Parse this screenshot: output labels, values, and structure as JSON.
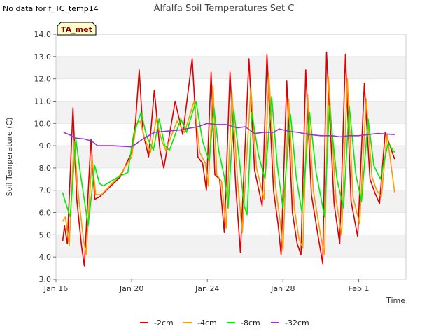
{
  "note": "No data for f_TC_temp14",
  "chart_data": {
    "type": "line",
    "title": "Alfalfa Soil Temperatures Set C",
    "xlabel": "Time",
    "ylabel": "Soil Temperature (C)",
    "badge": "TA_met",
    "xlim": [
      16.0,
      34.5
    ],
    "ylim": [
      3.0,
      14.0
    ],
    "x_ticks": [
      {
        "x": 16,
        "label": "Jan 16"
      },
      {
        "x": 20,
        "label": "Jan 20"
      },
      {
        "x": 24,
        "label": "Jan 24"
      },
      {
        "x": 28,
        "label": "Jan 28"
      },
      {
        "x": 32,
        "label": "Feb 1"
      }
    ],
    "y_ticks": [
      "3.0",
      "4.0",
      "5.0",
      "6.0",
      "7.0",
      "8.0",
      "9.0",
      "10.0",
      "11.0",
      "12.0",
      "13.0",
      "14.0"
    ],
    "series": [
      {
        "name": "-2cm",
        "color": "#dd0000",
        "points": [
          [
            16.35,
            4.7
          ],
          [
            16.45,
            5.4
          ],
          [
            16.6,
            4.6
          ],
          [
            16.9,
            10.7
          ],
          [
            17.1,
            6.6
          ],
          [
            17.35,
            4.5
          ],
          [
            17.5,
            3.6
          ],
          [
            17.85,
            9.3
          ],
          [
            18.05,
            6.6
          ],
          [
            18.3,
            6.7
          ],
          [
            19.4,
            7.6
          ],
          [
            20.0,
            8.7
          ],
          [
            20.2,
            10.0
          ],
          [
            20.4,
            12.4
          ],
          [
            20.6,
            9.6
          ],
          [
            20.9,
            8.5
          ],
          [
            21.2,
            11.5
          ],
          [
            21.5,
            8.8
          ],
          [
            21.7,
            8.0
          ],
          [
            22.3,
            11.0
          ],
          [
            22.7,
            9.5
          ],
          [
            23.2,
            12.9
          ],
          [
            23.5,
            8.5
          ],
          [
            23.75,
            8.2
          ],
          [
            23.95,
            7.0
          ],
          [
            24.2,
            12.3
          ],
          [
            24.4,
            7.7
          ],
          [
            24.65,
            7.5
          ],
          [
            24.9,
            5.1
          ],
          [
            25.2,
            12.3
          ],
          [
            25.5,
            7.2
          ],
          [
            25.75,
            4.2
          ],
          [
            26.2,
            12.9
          ],
          [
            26.5,
            7.9
          ],
          [
            26.9,
            6.3
          ],
          [
            27.15,
            13.1
          ],
          [
            27.5,
            7.0
          ],
          [
            27.75,
            5.4
          ],
          [
            27.9,
            4.1
          ],
          [
            28.2,
            11.9
          ],
          [
            28.5,
            6.0
          ],
          [
            28.75,
            4.6
          ],
          [
            28.95,
            4.1
          ],
          [
            29.2,
            12.4
          ],
          [
            29.5,
            6.8
          ],
          [
            29.9,
            4.7
          ],
          [
            30.1,
            3.7
          ],
          [
            30.3,
            13.2
          ],
          [
            30.7,
            6.4
          ],
          [
            31.0,
            4.6
          ],
          [
            31.3,
            13.1
          ],
          [
            31.6,
            6.5
          ],
          [
            31.95,
            4.9
          ],
          [
            32.3,
            11.8
          ],
          [
            32.6,
            7.5
          ],
          [
            32.85,
            6.9
          ],
          [
            33.1,
            6.4
          ],
          [
            33.4,
            9.6
          ],
          [
            33.9,
            8.4
          ]
        ]
      },
      {
        "name": "-4cm",
        "color": "#ff9900",
        "points": [
          [
            16.35,
            5.6
          ],
          [
            16.5,
            5.8
          ],
          [
            16.7,
            4.5
          ],
          [
            16.95,
            9.2
          ],
          [
            17.2,
            6.7
          ],
          [
            17.45,
            4.8
          ],
          [
            17.6,
            4.1
          ],
          [
            17.9,
            8.5
          ],
          [
            18.1,
            6.8
          ],
          [
            18.4,
            6.8
          ],
          [
            19.4,
            7.7
          ],
          [
            20.0,
            8.5
          ],
          [
            20.25,
            10.0
          ],
          [
            20.45,
            10.1
          ],
          [
            20.7,
            9.3
          ],
          [
            21.0,
            8.7
          ],
          [
            21.3,
            10.2
          ],
          [
            21.6,
            9.2
          ],
          [
            21.8,
            8.8
          ],
          [
            22.4,
            10.1
          ],
          [
            22.8,
            9.6
          ],
          [
            23.3,
            11.0
          ],
          [
            23.6,
            8.7
          ],
          [
            23.9,
            8.2
          ],
          [
            24.05,
            7.2
          ],
          [
            24.3,
            11.7
          ],
          [
            24.5,
            7.7
          ],
          [
            24.75,
            7.4
          ],
          [
            25.0,
            5.3
          ],
          [
            25.3,
            11.4
          ],
          [
            25.6,
            7.4
          ],
          [
            25.85,
            5.1
          ],
          [
            26.3,
            11.6
          ],
          [
            26.6,
            8.0
          ],
          [
            27.0,
            6.6
          ],
          [
            27.25,
            12.2
          ],
          [
            27.6,
            7.2
          ],
          [
            27.85,
            5.6
          ],
          [
            28.0,
            4.3
          ],
          [
            28.3,
            11.1
          ],
          [
            28.6,
            6.2
          ],
          [
            28.85,
            4.8
          ],
          [
            29.05,
            4.4
          ],
          [
            29.3,
            11.3
          ],
          [
            29.6,
            7.0
          ],
          [
            30.0,
            4.9
          ],
          [
            30.2,
            4.1
          ],
          [
            30.4,
            12.1
          ],
          [
            30.8,
            6.6
          ],
          [
            31.1,
            5.0
          ],
          [
            31.4,
            12.0
          ],
          [
            31.7,
            6.7
          ],
          [
            32.05,
            5.5
          ],
          [
            32.4,
            11.1
          ],
          [
            32.7,
            7.6
          ],
          [
            32.95,
            7.0
          ],
          [
            33.2,
            6.7
          ],
          [
            33.5,
            9.5
          ],
          [
            33.9,
            6.9
          ]
        ]
      },
      {
        "name": "-8cm",
        "color": "#00ee00",
        "points": [
          [
            16.35,
            6.9
          ],
          [
            16.45,
            6.6
          ],
          [
            16.75,
            5.8
          ],
          [
            17.05,
            9.3
          ],
          [
            17.3,
            7.7
          ],
          [
            17.6,
            6.0
          ],
          [
            17.7,
            5.4
          ],
          [
            18.05,
            8.1
          ],
          [
            18.3,
            7.3
          ],
          [
            18.5,
            7.2
          ],
          [
            19.3,
            7.6
          ],
          [
            19.8,
            7.8
          ],
          [
            20.1,
            9.5
          ],
          [
            20.5,
            10.5
          ],
          [
            20.8,
            9.4
          ],
          [
            21.15,
            8.8
          ],
          [
            21.45,
            10.2
          ],
          [
            21.75,
            9.0
          ],
          [
            22.0,
            8.8
          ],
          [
            22.6,
            10.2
          ],
          [
            22.9,
            9.6
          ],
          [
            23.4,
            11.0
          ],
          [
            23.75,
            9.2
          ],
          [
            24.1,
            8.3
          ],
          [
            24.35,
            10.7
          ],
          [
            24.6,
            8.8
          ],
          [
            24.9,
            7.6
          ],
          [
            25.1,
            6.2
          ],
          [
            25.4,
            10.6
          ],
          [
            25.7,
            8.3
          ],
          [
            25.95,
            6.3
          ],
          [
            26.1,
            5.9
          ],
          [
            26.35,
            10.5
          ],
          [
            26.7,
            8.6
          ],
          [
            27.05,
            7.5
          ],
          [
            27.4,
            11.2
          ],
          [
            27.7,
            8.1
          ],
          [
            28.0,
            6.2
          ],
          [
            28.4,
            10.4
          ],
          [
            28.7,
            7.6
          ],
          [
            29.0,
            6.0
          ],
          [
            29.4,
            10.5
          ],
          [
            29.75,
            7.8
          ],
          [
            30.2,
            5.8
          ],
          [
            30.45,
            10.8
          ],
          [
            30.85,
            7.5
          ],
          [
            31.2,
            6.2
          ],
          [
            31.5,
            10.8
          ],
          [
            31.85,
            7.7
          ],
          [
            32.15,
            6.5
          ],
          [
            32.5,
            10.2
          ],
          [
            32.8,
            8.1
          ],
          [
            33.15,
            7.5
          ],
          [
            33.55,
            9.1
          ],
          [
            33.9,
            8.7
          ]
        ]
      },
      {
        "name": "-32cm",
        "color": "#9933cc",
        "points": [
          [
            16.4,
            9.6
          ],
          [
            16.7,
            9.5
          ],
          [
            17.0,
            9.35
          ],
          [
            17.5,
            9.3
          ],
          [
            17.9,
            9.2
          ],
          [
            18.2,
            9.0
          ],
          [
            19.0,
            9.0
          ],
          [
            20.0,
            8.95
          ],
          [
            20.6,
            9.3
          ],
          [
            21.2,
            9.6
          ],
          [
            21.8,
            9.65
          ],
          [
            22.5,
            9.7
          ],
          [
            23.5,
            9.85
          ],
          [
            24.0,
            10.0
          ],
          [
            24.5,
            9.95
          ],
          [
            25.0,
            9.95
          ],
          [
            25.6,
            9.8
          ],
          [
            26.0,
            9.85
          ],
          [
            26.5,
            9.55
          ],
          [
            27.0,
            9.6
          ],
          [
            27.5,
            9.6
          ],
          [
            27.8,
            9.75
          ],
          [
            28.3,
            9.65
          ],
          [
            28.8,
            9.6
          ],
          [
            29.4,
            9.5
          ],
          [
            30.0,
            9.45
          ],
          [
            30.6,
            9.45
          ],
          [
            31.0,
            9.4
          ],
          [
            31.5,
            9.45
          ],
          [
            32.0,
            9.45
          ],
          [
            32.5,
            9.5
          ],
          [
            33.0,
            9.55
          ],
          [
            33.9,
            9.5
          ]
        ]
      }
    ]
  }
}
